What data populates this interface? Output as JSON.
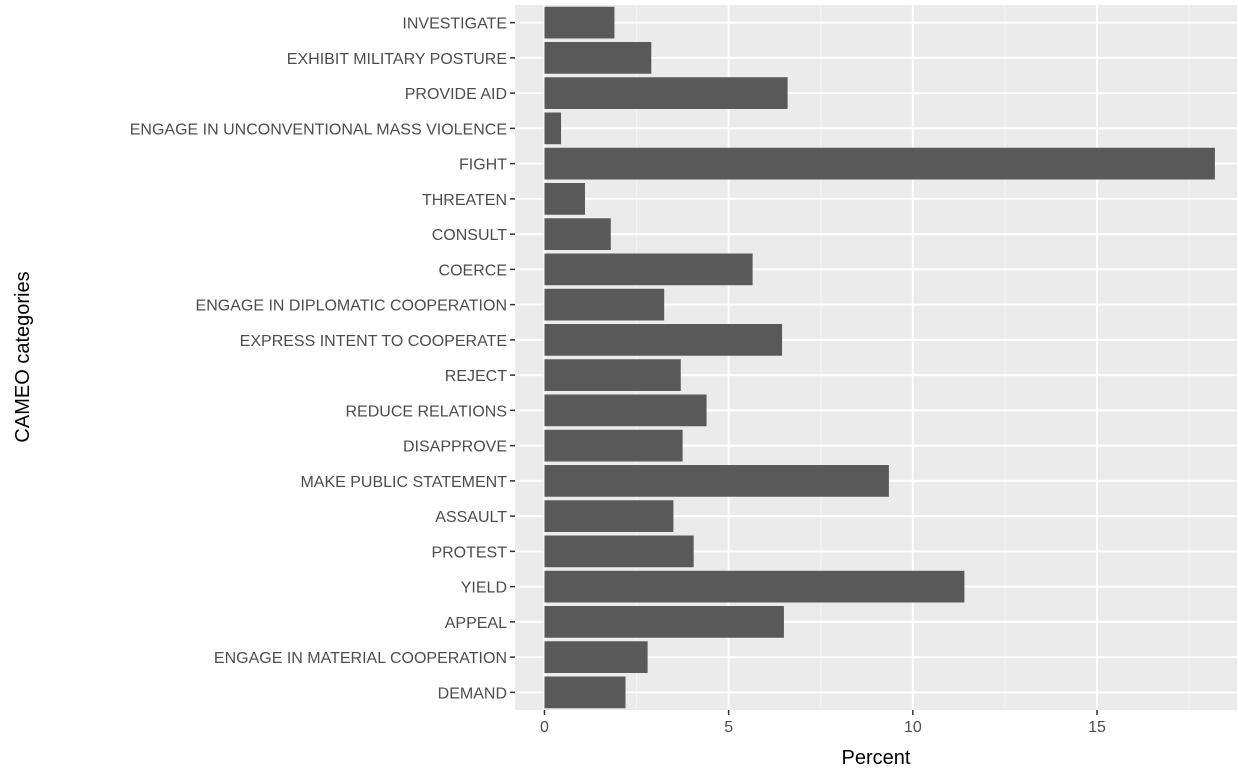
{
  "chart_data": {
    "type": "bar",
    "orientation": "horizontal",
    "title": "",
    "xlabel": "Percent",
    "ylabel": "CAMEO categories",
    "xlim": [
      -0.8,
      18.8
    ],
    "xticks": [
      0,
      5,
      10,
      15
    ],
    "xtick_labels": [
      "0",
      "5",
      "10",
      "15"
    ],
    "grid": true,
    "legend": "none",
    "categories": [
      "INVESTIGATE",
      "EXHIBIT MILITARY POSTURE",
      "PROVIDE AID",
      "ENGAGE IN UNCONVENTIONAL MASS VIOLENCE",
      "FIGHT",
      "THREATEN",
      "CONSULT",
      "COERCE",
      "ENGAGE IN DIPLOMATIC COOPERATION",
      "EXPRESS INTENT TO COOPERATE",
      "REJECT",
      "REDUCE RELATIONS",
      "DISAPPROVE",
      "MAKE PUBLIC STATEMENT",
      "ASSAULT",
      "PROTEST",
      "YIELD",
      "APPEAL",
      "ENGAGE IN MATERIAL COOPERATION",
      "DEMAND"
    ],
    "values": [
      1.9,
      2.9,
      6.6,
      0.45,
      18.2,
      1.1,
      1.8,
      5.65,
      3.25,
      6.45,
      3.7,
      4.4,
      3.75,
      9.35,
      3.5,
      4.05,
      11.4,
      6.5,
      2.8,
      2.2
    ],
    "colors": {
      "bar": "#595959",
      "panel": "#ebebeb",
      "grid_major": "#ffffff",
      "grid_minor": "#f5f5f5",
      "tick_text": "#4d4d4d",
      "tick_mark": "#333333"
    }
  }
}
